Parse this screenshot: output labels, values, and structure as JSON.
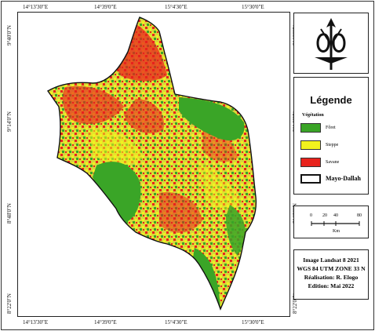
{
  "map": {
    "x_ticks": [
      "14°13'30\"E",
      "14°39'0\"E",
      "15°4'30\"E",
      "15°30'0\"E"
    ],
    "y_ticks": [
      "9°40'0\"N",
      "9°14'0\"N",
      "8°48'0\"N",
      "8°22'0\"N"
    ]
  },
  "legend": {
    "title": "Légende",
    "subtitle": "Végétation",
    "items": [
      {
        "label": "Fôret",
        "color": "#3aa527"
      },
      {
        "label": "Steppe",
        "color": "#f2f21e"
      },
      {
        "label": "Savane",
        "color": "#e8231d"
      }
    ],
    "boundary_label": "Mayo-Dallah"
  },
  "scale": {
    "ticks": [
      "0",
      "20",
      "40",
      "80"
    ],
    "unit": "Km"
  },
  "info": {
    "line1": "Image Landsat 8 2021",
    "line2": "WGS 84 UTM ZONE 33 N",
    "line3": "Réalisation: R. Elogo",
    "line4": "Edition: Mai 2022"
  },
  "colors": {
    "forest": "#3aa527",
    "steppe": "#f2f21e",
    "savanna": "#e8231d"
  }
}
